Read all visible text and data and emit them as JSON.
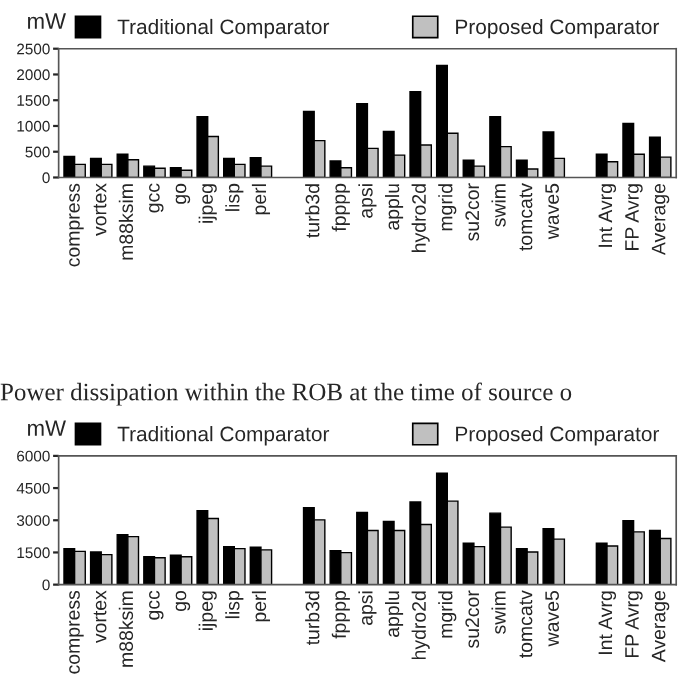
{
  "chart_data": [
    {
      "type": "bar",
      "ylabel": "mW",
      "categories": [
        "compress",
        "vortex",
        "m88ksim",
        "gcc",
        "go",
        "ijpeg",
        "lisp",
        "perl",
        null,
        "turb3d",
        "fpppp",
        "apsi",
        "applu",
        "hydro2d",
        "mgrid",
        "su2cor",
        "swim",
        "tomcatv",
        "wave5",
        null,
        "Int Avrg",
        "FP Avrg",
        "Average"
      ],
      "series": [
        {
          "name": "Traditional Comparator",
          "color": "#000000",
          "values": [
            410,
            370,
            450,
            220,
            190,
            1180,
            370,
            385,
            null,
            1280,
            320,
            1435,
            895,
            1665,
            2175,
            335,
            1180,
            335,
            885,
            null,
            450,
            1050,
            780
          ]
        },
        {
          "name": "Proposed Comparator",
          "color": "#c0c0c0",
          "values": [
            255,
            255,
            345,
            180,
            140,
            795,
            255,
            220,
            null,
            715,
            190,
            565,
            435,
            630,
            860,
            220,
            600,
            165,
            370,
            null,
            305,
            450,
            395
          ]
        }
      ],
      "ylim": [
        0,
        2500
      ],
      "yticks": [
        0,
        500,
        1000,
        1500,
        2000,
        2500
      ],
      "legend": "top",
      "grid": false,
      "annotations": [
        "Power dissipation within the ROB at the time of source o"
      ]
    },
    {
      "type": "bar",
      "ylabel": "mW",
      "categories": [
        "compress",
        "vortex",
        "m88ksim",
        "gcc",
        "go",
        "ijpeg",
        "lisp",
        "perl",
        null,
        "turb3d",
        "fpppp",
        "apsi",
        "applu",
        "hydro2d",
        "mgrid",
        "su2cor",
        "swim",
        "tomcatv",
        "wave5",
        null,
        "Int Avrg",
        "FP Avrg",
        "Average"
      ],
      "series": [
        {
          "name": "Traditional Comparator",
          "color": "#000000",
          "values": [
            1680,
            1520,
            2330,
            1300,
            1370,
            3450,
            1770,
            1740,
            null,
            3580,
            1580,
            3360,
            2950,
            3850,
            5190,
            1930,
            3330,
            1680,
            2610,
            null,
            1930,
            2980,
            2520
          ]
        },
        {
          "name": "Proposed Comparator",
          "color": "#c0c0c0",
          "values": [
            1550,
            1400,
            2240,
            1250,
            1300,
            3080,
            1680,
            1620,
            null,
            3020,
            1490,
            2520,
            2520,
            2800,
            3890,
            1770,
            2680,
            1520,
            2120,
            null,
            1800,
            2460,
            2150
          ]
        }
      ],
      "ylim": [
        0,
        6000
      ],
      "yticks": [
        0,
        1500,
        3000,
        4500,
        6000
      ],
      "legend": "top",
      "grid": false
    }
  ]
}
